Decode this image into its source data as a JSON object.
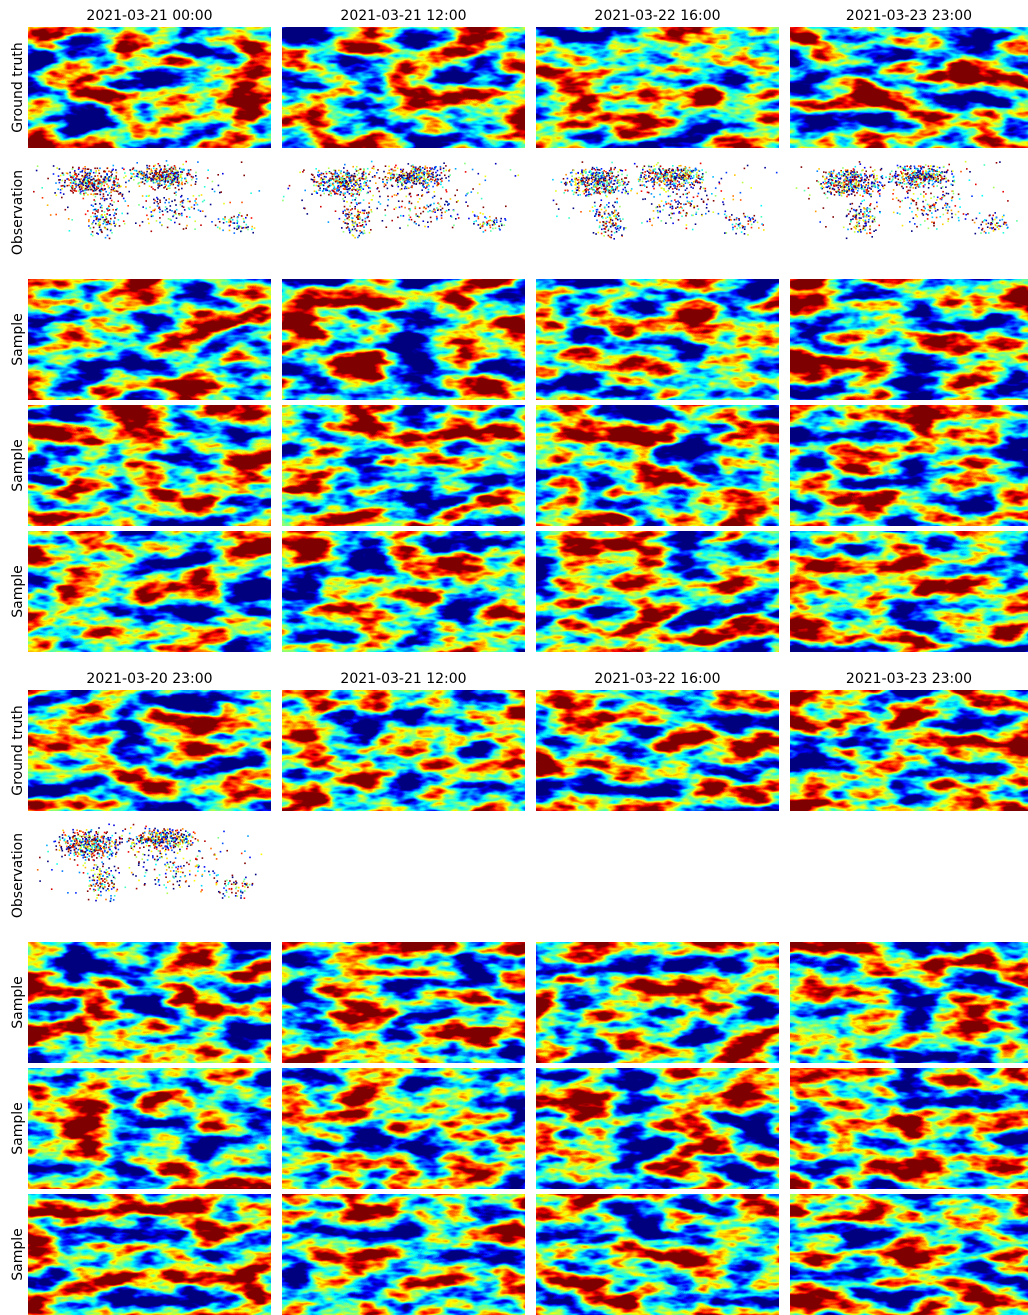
{
  "blocks": [
    {
      "columns": [
        "2021-03-21 00:00",
        "2021-03-21 12:00",
        "2021-03-22 16:00",
        "2021-03-23 23:00"
      ],
      "rows": [
        "Ground truth",
        "Observation",
        "Sample",
        "Sample",
        "Sample"
      ]
    },
    {
      "columns": [
        "2021-03-20 23:00",
        "2021-03-21 12:00",
        "2021-03-22 16:00",
        "2021-03-23 23:00"
      ],
      "rows": [
        "Ground truth",
        "Observation",
        "Sample",
        "Sample",
        "Sample"
      ]
    }
  ]
}
